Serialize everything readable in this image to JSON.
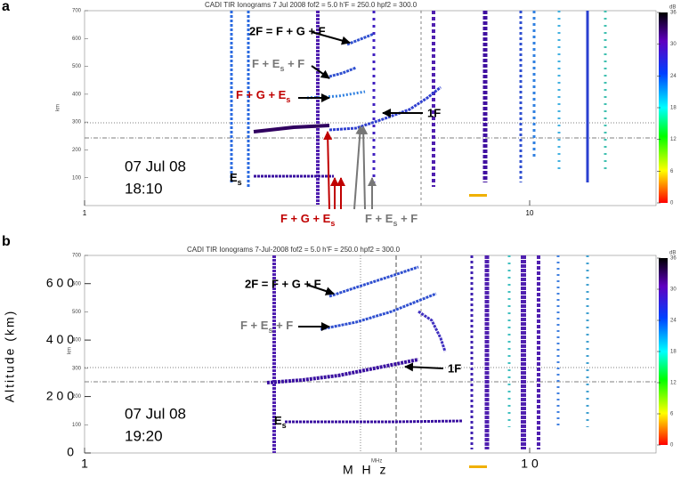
{
  "panels": [
    {
      "label": "a",
      "header": "CADI TIR Ionograms    7 Jul 2008        fof2 =  5.0    h'F =  250.0    hpf2 =  300.0",
      "y_unit": "km",
      "yticks": [
        100,
        200,
        300,
        400,
        500,
        600,
        700
      ],
      "xticks": [
        1,
        10
      ],
      "date": "07 Jul 08",
      "time": "18:10",
      "annotations": [
        [
          "2F = F + G + F"
        ],
        [
          "F + E",
          "s",
          " + F"
        ],
        [
          "F + G + E",
          "s"
        ],
        [
          "1F"
        ],
        [
          "E",
          "s"
        ],
        [
          "F + G + E",
          "s"
        ],
        [
          "F + E",
          "s",
          " + F"
        ]
      ],
      "colorbar": {
        "unit": "dB",
        "ticks": [
          0,
          6,
          12,
          18,
          24,
          30,
          36
        ]
      }
    },
    {
      "label": "b",
      "header": "CADI TIR Ionograms    7-Jul-2008        fof2 =  5.0    h'F =  250.0    hpf2 =  300.0",
      "y_unit": "km",
      "x_unit": "MHz",
      "yticks": [
        100,
        200,
        300,
        400,
        500,
        600,
        700
      ],
      "yticks_major": [
        {
          "value": 0,
          "label": "0"
        },
        {
          "value": 200,
          "label": "2 0 0"
        },
        {
          "value": 400,
          "label": "4 0 0"
        },
        {
          "value": 600,
          "label": "6 0 0"
        }
      ],
      "y_axis_title": "Altitude (km)",
      "x_axis_title": "M H z",
      "xticks": [
        {
          "value": 1,
          "label": "1"
        },
        {
          "value": 10,
          "label": "1 0"
        }
      ],
      "date": "07 Jul 08",
      "time": "19:20",
      "annotations": [
        [
          "2F = F + G + F"
        ],
        [
          "F + E",
          "s",
          " + F"
        ],
        [
          "1F"
        ],
        [
          "E",
          "s"
        ]
      ],
      "colorbar": {
        "unit": "dB",
        "ticks": [
          0,
          6,
          12,
          18,
          24,
          30,
          36
        ]
      }
    }
  ]
}
